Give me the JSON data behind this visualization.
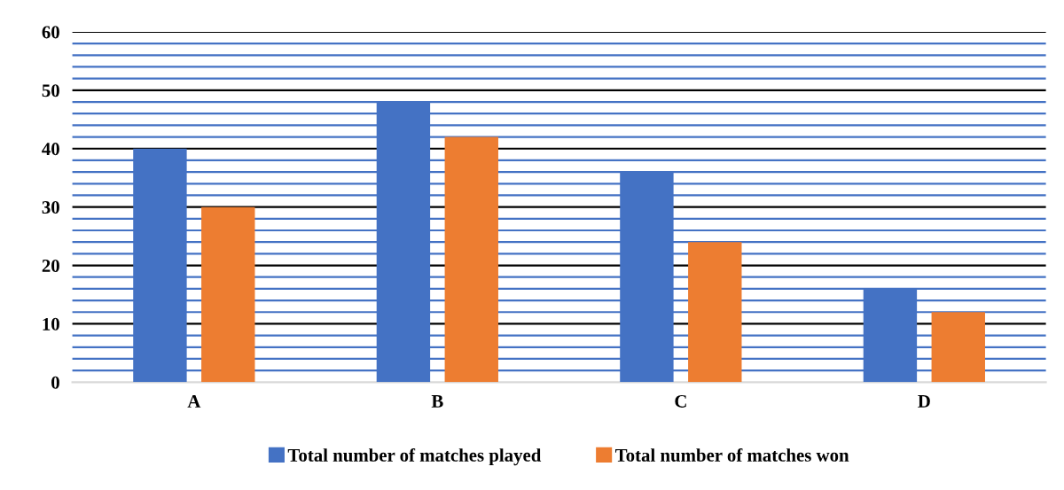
{
  "chart_data": {
    "type": "bar",
    "categories": [
      "A",
      "B",
      "C",
      "D"
    ],
    "series": [
      {
        "name": "Total number of matches played",
        "color": "#4472c4",
        "values": [
          40,
          48,
          36,
          16
        ]
      },
      {
        "name": "Total number of matches won",
        "color": "#ed7d31",
        "values": [
          30,
          42,
          24,
          12
        ]
      }
    ],
    "ylim": [
      0,
      60
    ],
    "yticks": [
      0,
      {
        "value": 2,
        "label": null
      },
      {
        "value": 4,
        "label": null
      },
      {
        "value": 6,
        "label": null
      },
      {
        "value": 8,
        "label": null
      },
      10,
      {
        "value": 12,
        "label": null
      },
      {
        "value": 14,
        "label": null
      },
      {
        "value": 16,
        "label": null
      },
      {
        "value": 18,
        "label": null
      },
      20,
      {
        "value": 22,
        "label": null
      },
      {
        "value": 24,
        "label": null
      },
      {
        "value": 26,
        "label": null
      },
      {
        "value": 28,
        "label": null
      },
      30,
      {
        "value": 32,
        "label": null
      },
      {
        "value": 34,
        "label": null
      },
      {
        "value": 36,
        "label": null
      },
      {
        "value": 38,
        "label": null
      },
      40,
      {
        "value": 42,
        "label": null
      },
      {
        "value": 44,
        "label": null
      },
      {
        "value": 46,
        "label": null
      },
      {
        "value": 48,
        "label": null
      },
      50,
      {
        "value": 52,
        "label": null
      },
      {
        "value": 54,
        "label": null
      },
      {
        "value": 56,
        "label": null
      },
      {
        "value": 58,
        "label": null
      },
      60
    ],
    "grid": "y",
    "legend": "bottom"
  }
}
